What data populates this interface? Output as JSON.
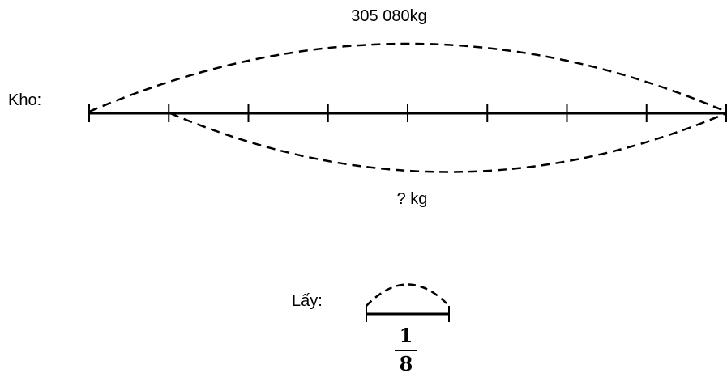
{
  "diagram": {
    "warehouse_label": "Kho:",
    "total_label": "305 080kg",
    "unknown_label": "? kg",
    "take_label": "Lấy:",
    "fraction": {
      "numerator": "1",
      "denominator": "8"
    },
    "segments": 8,
    "unknown_segments": 7
  }
}
